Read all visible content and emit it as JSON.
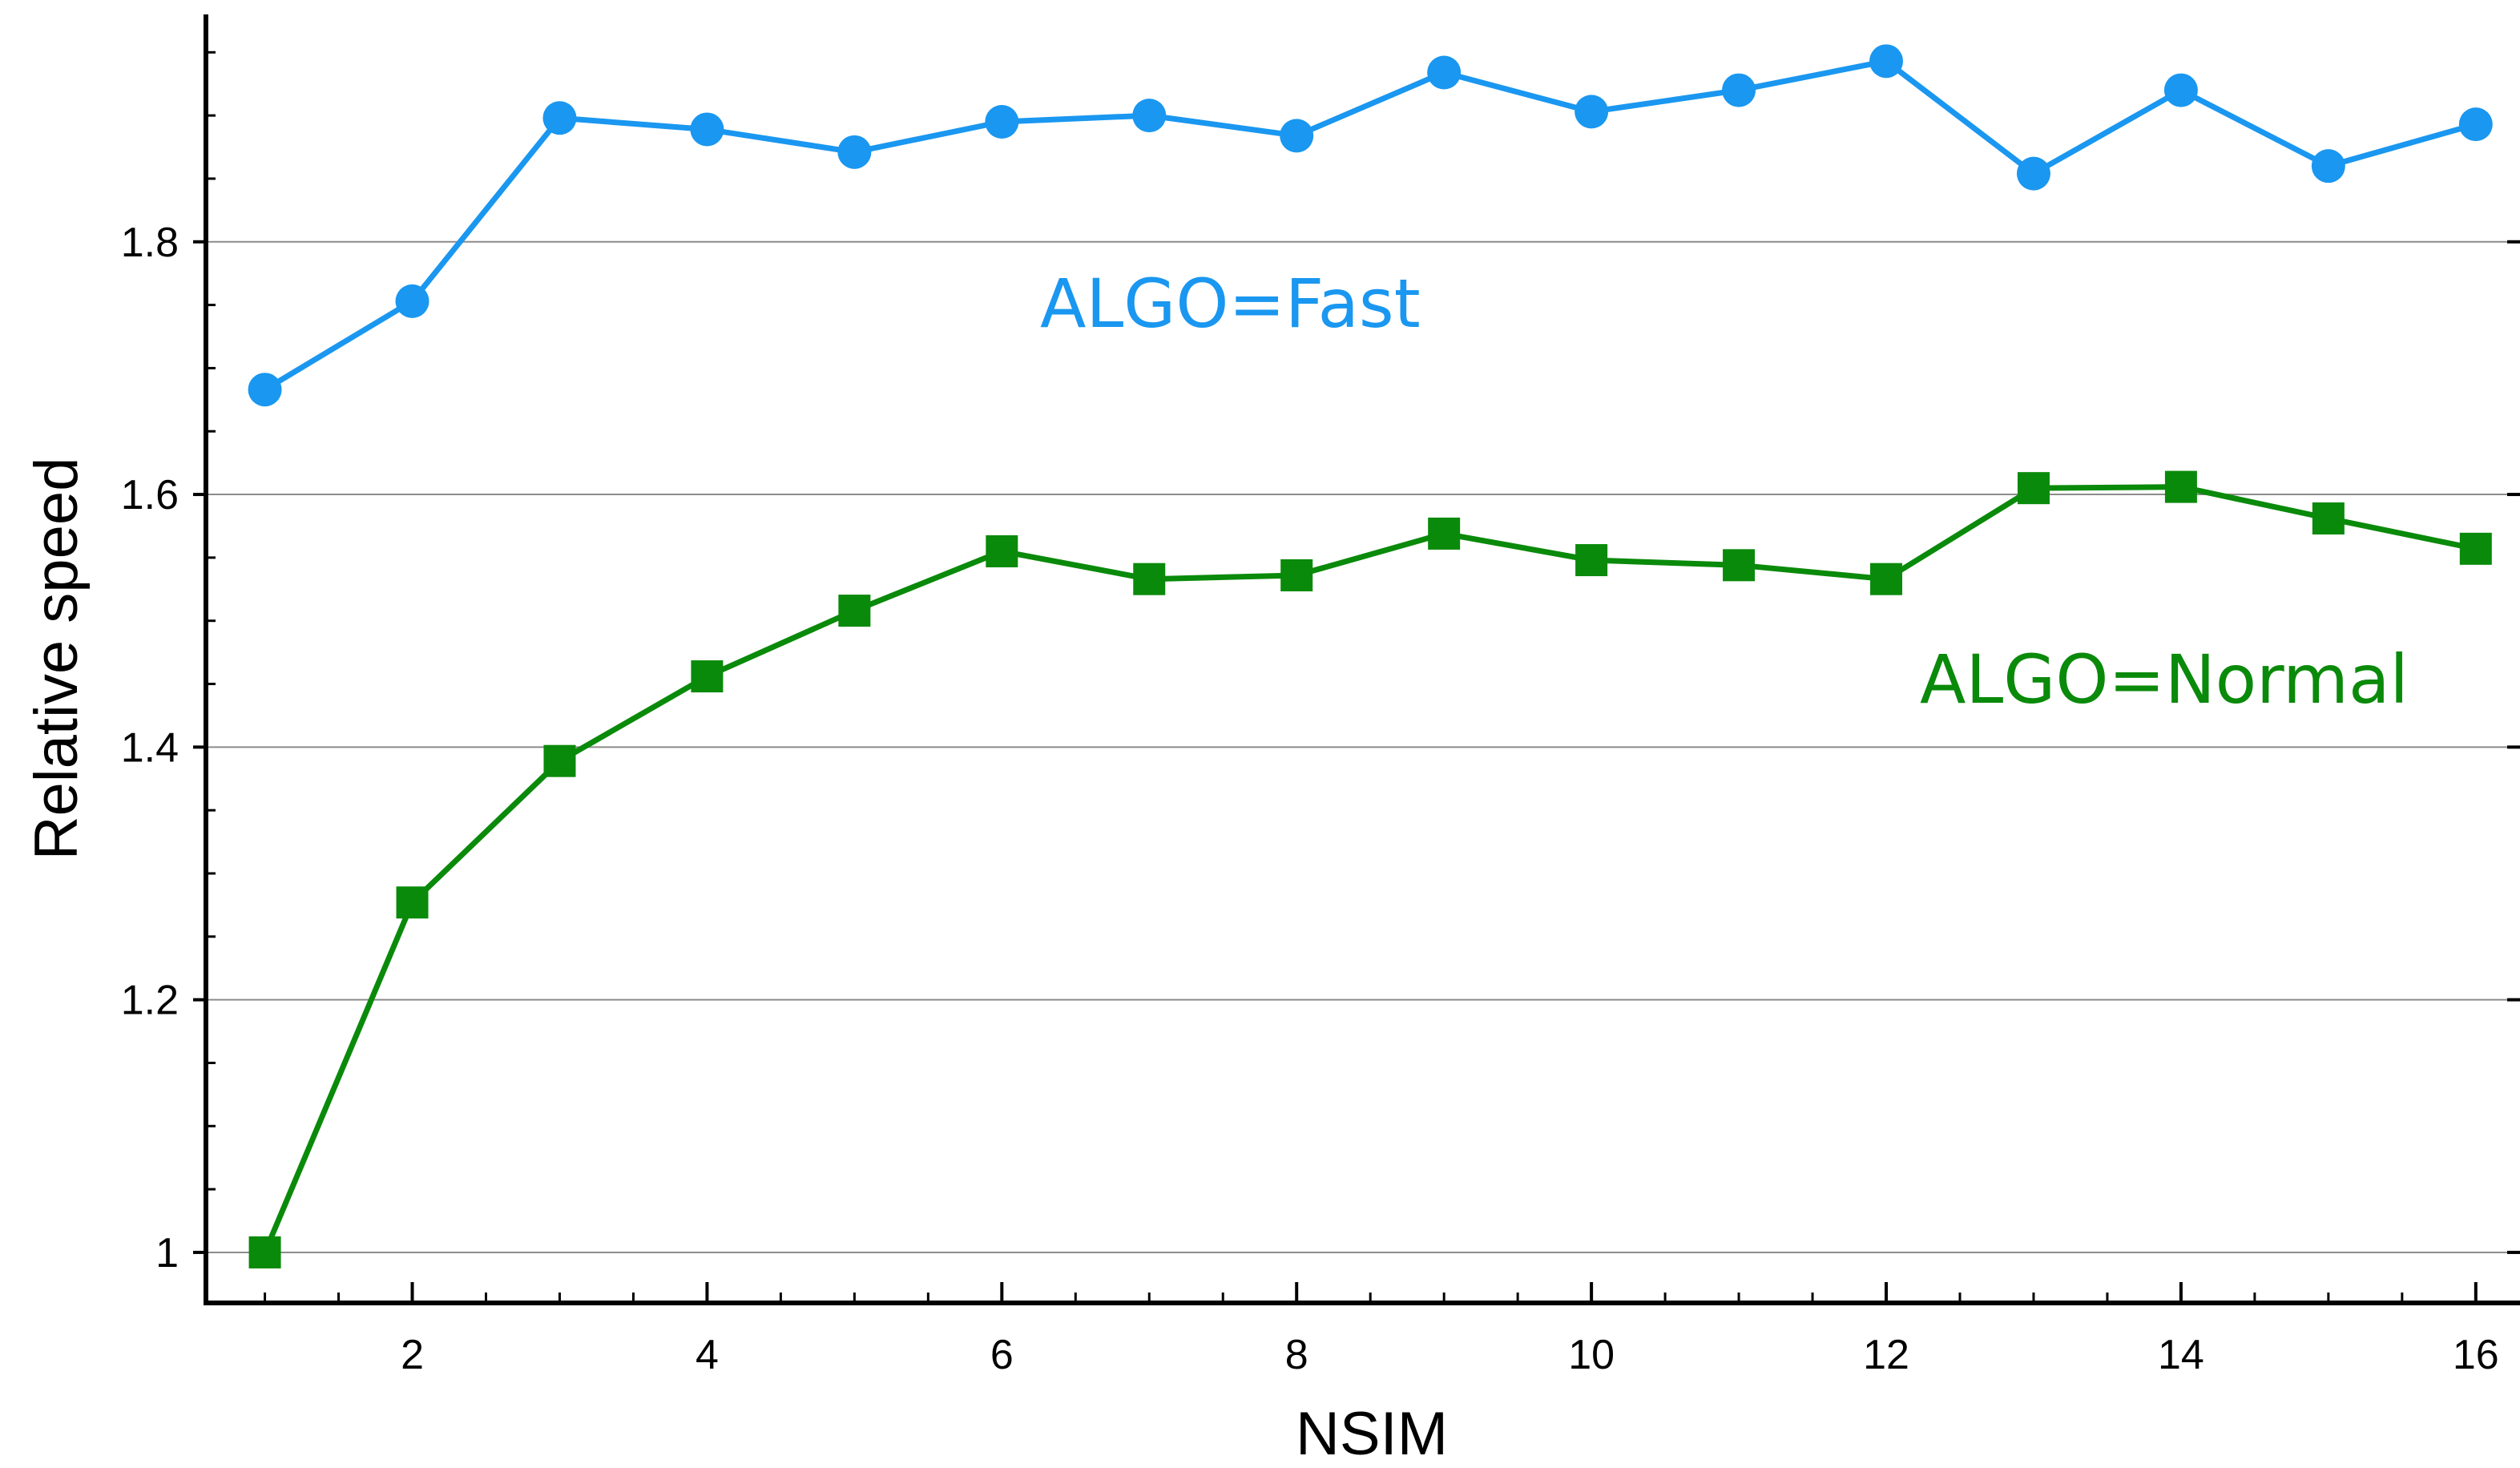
{
  "chart_data": {
    "type": "line",
    "title": "",
    "xlabel": "NSIM",
    "ylabel": "Relative speed",
    "x": [
      1,
      2,
      3,
      4,
      5,
      6,
      7,
      8,
      9,
      10,
      11,
      12,
      13,
      14,
      15,
      16
    ],
    "xlim": [
      0.6,
      16.3
    ],
    "ylim": [
      0.96,
      1.98
    ],
    "x_ticks": [
      2,
      4,
      6,
      8,
      10,
      12,
      14,
      16
    ],
    "x_tick_labels": [
      "2",
      "4",
      "6",
      "8",
      "10",
      "12",
      "14",
      "16"
    ],
    "y_ticks": [
      1.0,
      1.2,
      1.4,
      1.6,
      1.8
    ],
    "y_tick_labels": [
      "1",
      "1.2",
      "1.4",
      "1.6",
      "1.8"
    ],
    "grid": "horizontal",
    "legend": "none",
    "series": [
      {
        "annotation": "ALGO=Fast",
        "color": "#1a97f0",
        "marker": "circle",
        "values": [
          1.683,
          1.753,
          1.898,
          1.889,
          1.871,
          1.895,
          1.9,
          1.884,
          1.934,
          1.903,
          1.92,
          1.943,
          1.854,
          1.92,
          1.86,
          1.893
        ]
      },
      {
        "annotation": "ALGO=Normal",
        "color": "#0a8a0a",
        "marker": "square",
        "values": [
          1.0,
          1.277,
          1.389,
          1.456,
          1.508,
          1.555,
          1.533,
          1.536,
          1.569,
          1.548,
          1.544,
          1.533,
          1.605,
          1.606,
          1.581,
          1.557
        ]
      }
    ]
  }
}
